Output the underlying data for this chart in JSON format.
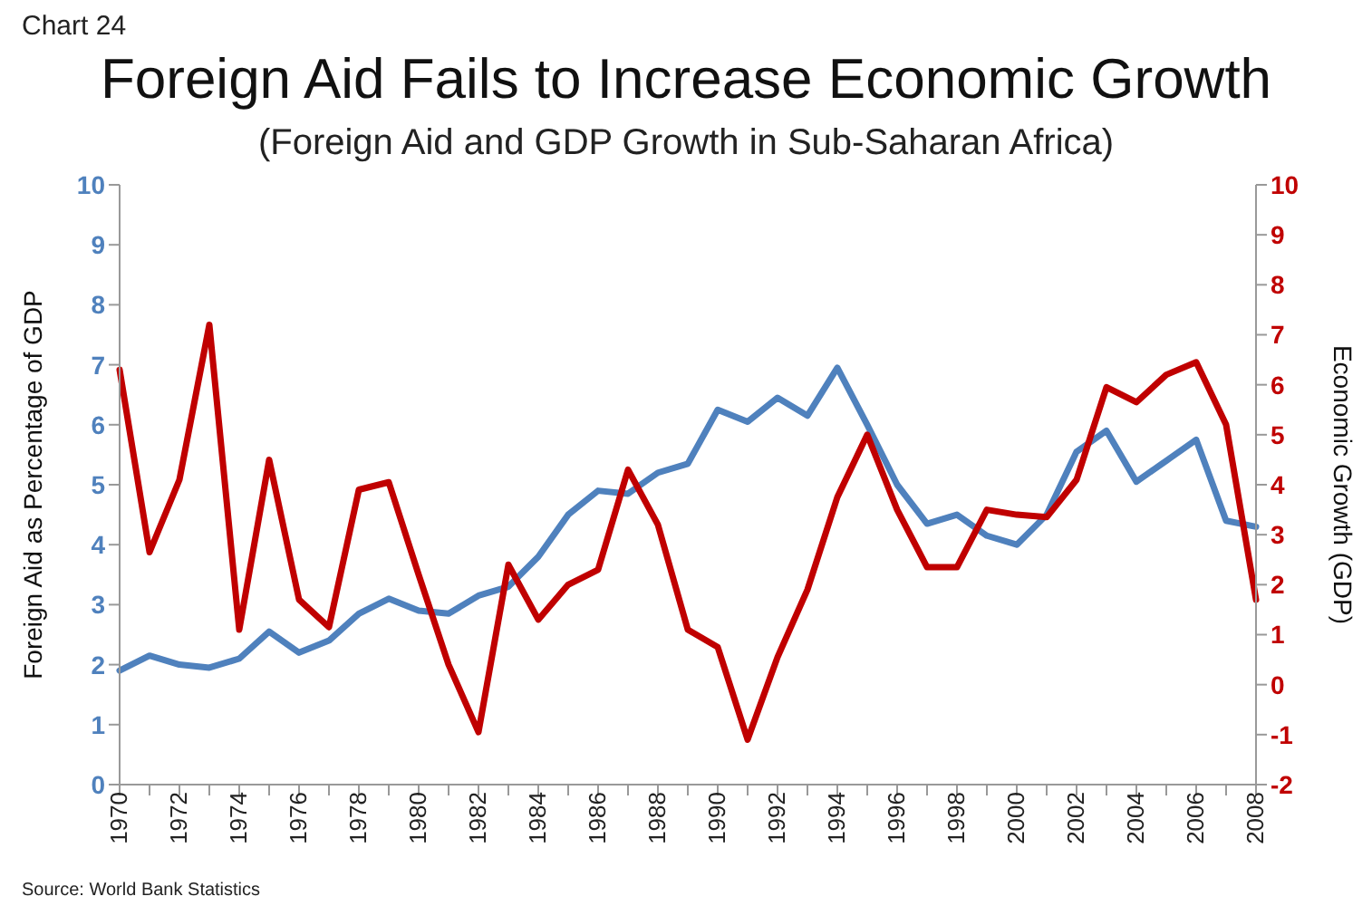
{
  "chart_data": {
    "type": "line",
    "title": "Foreign Aid Fails to Increase Economic Growth",
    "subtitle": "(Foreign Aid and GDP Growth in Sub-Saharan Africa)",
    "ylabel": "Foreign Aid as Percentage of GDP",
    "y2label": "Economic Growth (GDP)",
    "annotations": [
      "Chart 24",
      "Source:  World Bank Statistics"
    ],
    "categories": [
      "1970",
      null,
      "1972",
      null,
      "1974",
      null,
      "1976",
      null,
      "1978",
      null,
      "1980",
      null,
      "1982",
      null,
      "1984",
      null,
      "1986",
      null,
      "1988",
      null,
      "1990",
      null,
      "1992",
      null,
      "1994",
      null,
      "1996",
      null,
      "1998",
      null,
      "2000",
      null,
      "2002",
      null,
      "2004",
      null,
      "2006",
      null,
      "2008"
    ],
    "series": [
      {
        "color": "#4f81bd",
        "values": [
          1.9,
          2.15,
          2.0,
          1.95,
          2.1,
          2.55,
          2.2,
          2.4,
          2.85,
          3.1,
          2.9,
          2.85,
          3.15,
          3.3,
          3.8,
          4.5,
          4.9,
          4.85,
          5.2,
          5.35,
          6.25,
          6.05,
          6.45,
          6.15,
          6.95,
          6.0,
          5.0,
          4.35,
          4.5,
          4.15,
          4.0,
          4.5,
          5.55,
          5.9,
          5.05,
          5.4,
          5.75,
          4.4,
          4.3
        ]
      },
      {
        "color": "#c00000",
        "axis": "y2",
        "values": [
          6.3,
          2.65,
          4.1,
          7.2,
          1.1,
          4.5,
          1.7,
          1.15,
          3.9,
          4.05,
          2.2,
          0.4,
          -0.95,
          2.4,
          1.3,
          2.0,
          2.3,
          4.3,
          3.2,
          1.1,
          0.75,
          -1.1,
          0.55,
          1.9,
          3.75,
          5.0,
          3.5,
          2.35,
          2.35,
          3.5,
          3.4,
          3.35,
          4.1,
          5.95,
          5.65,
          6.2,
          6.45,
          5.2,
          1.7
        ]
      }
    ],
    "ylim": [
      0,
      10
    ],
    "yticks": [
      0,
      1,
      2,
      3,
      4,
      5,
      6,
      7,
      8,
      9,
      10
    ],
    "y2lim": [
      -2,
      10
    ],
    "y2ticks": [
      -2,
      -1,
      0,
      1,
      2,
      3,
      4,
      5,
      6,
      7,
      8,
      9,
      10
    ],
    "grid": false,
    "legend": false,
    "marker": "none",
    "line_style": "solid"
  }
}
